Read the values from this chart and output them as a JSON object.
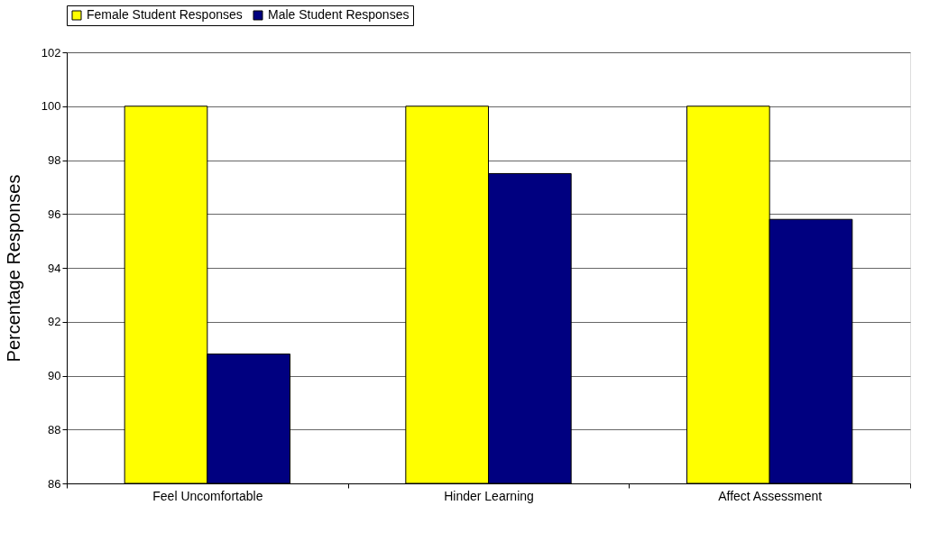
{
  "chart_data": {
    "type": "bar",
    "ylabel": "Percentage Responses",
    "categories": [
      "Feel Uncomfortable",
      "Hinder Learning",
      "Affect Assessment"
    ],
    "series": [
      {
        "name": "Female Student Responses",
        "color": "#ffff00",
        "values": [
          100,
          100,
          100
        ]
      },
      {
        "name": "Male Student Responses",
        "color": "#000080",
        "values": [
          90.8,
          97.5,
          95.8
        ]
      }
    ],
    "ylim": [
      86,
      102
    ],
    "yticks": [
      86,
      88,
      90,
      92,
      94,
      96,
      98,
      100,
      102
    ],
    "grid": "y",
    "legend": "top"
  }
}
